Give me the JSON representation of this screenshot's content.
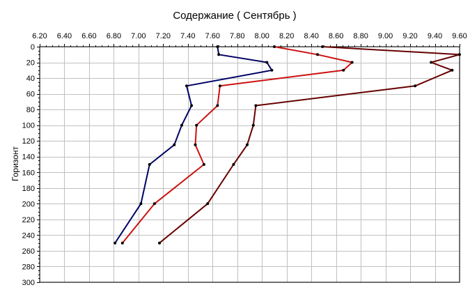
{
  "chart_data": {
    "type": "line",
    "title": "Содержание    ( Сентябрь )",
    "xlabel": "",
    "ylabel": "Горизонт",
    "xlim": [
      6.2,
      9.6
    ],
    "ylim": [
      0,
      300
    ],
    "y_inverted": true,
    "x_axis_position": "top",
    "grid": true,
    "x_ticks": [
      6.2,
      6.4,
      6.6,
      6.8,
      7.0,
      7.2,
      7.4,
      7.6,
      7.8,
      8.0,
      8.2,
      8.4,
      8.6,
      8.8,
      9.0,
      9.2,
      9.4,
      9.6
    ],
    "x_tick_labels": [
      "6.20",
      "6.40",
      "6.60",
      "6.80",
      "7.00",
      "7.20",
      "7.40",
      "7.60",
      "7.80",
      "8.00",
      "8.20",
      "8.40",
      "8.60",
      "8.80",
      "9.00",
      "9.20",
      "9.40",
      "9.60"
    ],
    "y_ticks": [
      0,
      20,
      40,
      60,
      80,
      100,
      120,
      140,
      160,
      180,
      200,
      220,
      240,
      260,
      280,
      300
    ],
    "y_tick_labels": [
      "0",
      "20",
      "40",
      "60",
      "80",
      "100",
      "120",
      "140",
      "160",
      "180",
      "200",
      "220",
      "240",
      "260",
      "280",
      "300"
    ],
    "series": [
      {
        "color": "#000066",
        "points": [
          {
            "x": 7.64,
            "y": 0
          },
          {
            "x": 7.65,
            "y": 10
          },
          {
            "x": 8.04,
            "y": 20
          },
          {
            "x": 8.08,
            "y": 30
          },
          {
            "x": 7.39,
            "y": 50
          },
          {
            "x": 7.43,
            "y": 75
          },
          {
            "x": 7.35,
            "y": 100
          },
          {
            "x": 7.29,
            "y": 125
          },
          {
            "x": 7.09,
            "y": 150
          },
          {
            "x": 7.02,
            "y": 200
          },
          {
            "x": 6.81,
            "y": 250
          }
        ]
      },
      {
        "color": "#cc1111",
        "points": [
          {
            "x": 8.1,
            "y": 0
          },
          {
            "x": 8.45,
            "y": 10
          },
          {
            "x": 8.73,
            "y": 20
          },
          {
            "x": 8.66,
            "y": 30
          },
          {
            "x": 7.66,
            "y": 50
          },
          {
            "x": 7.64,
            "y": 75
          },
          {
            "x": 7.47,
            "y": 100
          },
          {
            "x": 7.46,
            "y": 125
          },
          {
            "x": 7.53,
            "y": 150
          },
          {
            "x": 7.13,
            "y": 200
          },
          {
            "x": 6.87,
            "y": 250
          }
        ]
      },
      {
        "color": "#660000",
        "points": [
          {
            "x": 8.49,
            "y": 0
          },
          {
            "x": 9.6,
            "y": 10
          },
          {
            "x": 9.37,
            "y": 20
          },
          {
            "x": 9.54,
            "y": 30
          },
          {
            "x": 9.24,
            "y": 50
          },
          {
            "x": 7.95,
            "y": 75
          },
          {
            "x": 7.93,
            "y": 100
          },
          {
            "x": 7.88,
            "y": 125
          },
          {
            "x": 7.77,
            "y": 150
          },
          {
            "x": 7.56,
            "y": 200
          },
          {
            "x": 7.17,
            "y": 250
          }
        ]
      }
    ]
  }
}
